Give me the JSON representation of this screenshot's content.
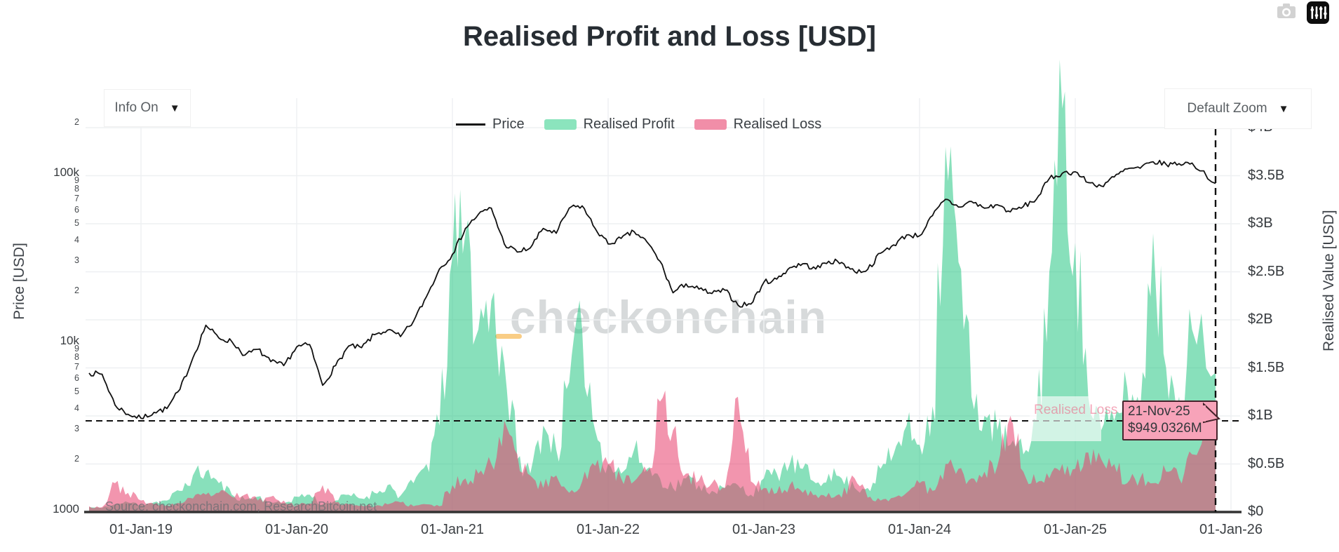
{
  "header": {
    "title": "Realised Profit and Loss [USD]"
  },
  "controls": {
    "info_dropdown": {
      "label": "Info On",
      "arrow": "▼"
    },
    "zoom_dropdown": {
      "label": "Default Zoom",
      "arrow": "▼"
    }
  },
  "legend": {
    "items": [
      {
        "name": "Price",
        "type": "line",
        "color": "#111111"
      },
      {
        "name": "Realised Profit",
        "type": "area",
        "color": "#8be4bd"
      },
      {
        "name": "Realised Loss",
        "type": "area",
        "color": "#f18ea8"
      }
    ]
  },
  "axes": {
    "left_title": "Price [USD]",
    "right_title": "Realised Value [USD]",
    "price_ticks": [
      {
        "label": "2",
        "value": 200000,
        "minor": true
      },
      {
        "label": "100k",
        "value": 100000,
        "minor": false
      },
      {
        "label": "9",
        "value": 90000,
        "minor": true
      },
      {
        "label": "8",
        "value": 80000,
        "minor": true
      },
      {
        "label": "7",
        "value": 70000,
        "minor": true
      },
      {
        "label": "6",
        "value": 60000,
        "minor": true
      },
      {
        "label": "5",
        "value": 50000,
        "minor": true
      },
      {
        "label": "4",
        "value": 40000,
        "minor": true
      },
      {
        "label": "3",
        "value": 30000,
        "minor": true
      },
      {
        "label": "2",
        "value": 20000,
        "minor": true
      },
      {
        "label": "10k",
        "value": 10000,
        "minor": false
      },
      {
        "label": "9",
        "value": 9000,
        "minor": true
      },
      {
        "label": "8",
        "value": 8000,
        "minor": true
      },
      {
        "label": "7",
        "value": 7000,
        "minor": true
      },
      {
        "label": "6",
        "value": 6000,
        "minor": true
      },
      {
        "label": "5",
        "value": 5000,
        "minor": true
      },
      {
        "label": "4",
        "value": 4000,
        "minor": true
      },
      {
        "label": "3",
        "value": 3000,
        "minor": true
      },
      {
        "label": "2",
        "value": 2000,
        "minor": true
      },
      {
        "label": "1000",
        "value": 1000,
        "minor": false
      }
    ],
    "value_ticks": [
      {
        "label": "$0",
        "value": 0
      },
      {
        "label": "$0.5B",
        "value": 0.5
      },
      {
        "label": "$1B",
        "value": 1
      },
      {
        "label": "$1.5B",
        "value": 1.5
      },
      {
        "label": "$2B",
        "value": 2
      },
      {
        "label": "$2.5B",
        "value": 2.5
      },
      {
        "label": "$3B",
        "value": 3
      },
      {
        "label": "$3.5B",
        "value": 3.5
      },
      {
        "label": "$4B",
        "value": 4
      }
    ],
    "x_ticks": [
      {
        "label": "01-Jan-19",
        "year": 2019
      },
      {
        "label": "01-Jan-20",
        "year": 2020
      },
      {
        "label": "01-Jan-21",
        "year": 2021
      },
      {
        "label": "01-Jan-22",
        "year": 2022
      },
      {
        "label": "01-Jan-23",
        "year": 2023
      },
      {
        "label": "01-Jan-24",
        "year": 2024
      },
      {
        "label": "01-Jan-25",
        "year": 2025
      },
      {
        "label": "01-Jan-26",
        "year": 2026
      }
    ]
  },
  "annotations": {
    "watermark": "checkonchain",
    "source": "Source: checkonchain.com, ResearchBitcoin.net",
    "hover_series_label": "Realised Loss",
    "tooltip": {
      "date": "21-Nov-25",
      "value": "$949.0326M"
    }
  },
  "colors": {
    "price_line": "#111111",
    "profit_fill": "rgba(38,198,132,0.55)",
    "loss_fill": "rgba(232,62,108,0.55)",
    "grid": "#eef0f2",
    "axis_line": "#333333",
    "crosshair": "#111111",
    "tooltip_bg": "#f7a3b9",
    "tooltip_border": "#45242c"
  },
  "chart_data": {
    "type": "area",
    "title": "Realised Profit and Loss [USD]",
    "x_start": "2018-09",
    "x_end": "2025-11-21",
    "interval": "monthly",
    "left_axis": {
      "label": "Price [USD]",
      "scale": "log",
      "range": [
        1000,
        200000
      ]
    },
    "right_axis": {
      "label": "Realised Value [USD]",
      "scale": "linear",
      "range_billions_usd": [
        0,
        4.3
      ]
    },
    "legend_position": "top-center",
    "grid": true,
    "series": [
      {
        "name": "Price",
        "axis": "left",
        "style": "line",
        "unit": "USD",
        "color": "#111111",
        "values": [
          6500,
          6400,
          4200,
          3700,
          3500,
          3800,
          4000,
          5200,
          8000,
          12500,
          10500,
          10000,
          8300,
          9000,
          7600,
          7200,
          9300,
          9600,
          5500,
          7200,
          9400,
          9200,
          11000,
          11700,
          10700,
          13200,
          18500,
          27000,
          33000,
          47000,
          57000,
          62000,
          38000,
          34000,
          36000,
          47000,
          44000,
          62000,
          64000,
          47000,
          38000,
          41000,
          45000,
          39000,
          30000,
          19500,
          22000,
          20500,
          19300,
          20200,
          16500,
          16700,
          22500,
          23500,
          27500,
          29000,
          27000,
          30000,
          29500,
          26000,
          26800,
          33500,
          37500,
          43000,
          42500,
          56000,
          70000,
          63000,
          68000,
          62000,
          65000,
          59000,
          63500,
          70000,
          93000,
          100000,
          102000,
          88000,
          84000,
          95000,
          106000,
          107000,
          117000,
          113000,
          114000,
          115000,
          87000
        ]
      },
      {
        "name": "Realised Profit",
        "axis": "right",
        "style": "area",
        "unit": "USD_billions",
        "color": "#26c685",
        "values": [
          0.05,
          0.04,
          0.08,
          0.1,
          0.08,
          0.1,
          0.12,
          0.22,
          0.38,
          0.42,
          0.3,
          0.18,
          0.13,
          0.16,
          0.1,
          0.09,
          0.16,
          0.18,
          0.08,
          0.12,
          0.18,
          0.14,
          0.2,
          0.28,
          0.17,
          0.3,
          0.5,
          0.9,
          2.65,
          2.9,
          1.9,
          2.2,
          1.55,
          0.55,
          0.4,
          0.9,
          0.65,
          1.35,
          1.9,
          0.85,
          0.5,
          0.4,
          0.65,
          0.45,
          0.35,
          0.25,
          0.35,
          0.28,
          0.22,
          0.25,
          0.28,
          0.18,
          0.35,
          0.4,
          0.5,
          0.45,
          0.3,
          0.4,
          0.35,
          0.25,
          0.25,
          0.45,
          0.6,
          0.9,
          0.7,
          1.1,
          3.8,
          2.6,
          1.2,
          1.0,
          0.85,
          0.7,
          0.6,
          0.95,
          2.5,
          4.2,
          2.8,
          1.2,
          0.85,
          0.95,
          1.3,
          1.05,
          2.9,
          1.5,
          1.2,
          1.9,
          1.45
        ]
      },
      {
        "name": "Realised Loss",
        "axis": "right",
        "style": "area",
        "unit": "USD_billions",
        "color": "#e83e6c",
        "values": [
          0.06,
          0.05,
          0.3,
          0.2,
          0.12,
          0.08,
          0.07,
          0.09,
          0.14,
          0.18,
          0.2,
          0.16,
          0.18,
          0.12,
          0.16,
          0.12,
          0.07,
          0.09,
          0.28,
          0.1,
          0.08,
          0.07,
          0.06,
          0.08,
          0.1,
          0.06,
          0.08,
          0.06,
          0.28,
          0.35,
          0.4,
          0.5,
          0.95,
          0.6,
          0.38,
          0.25,
          0.38,
          0.2,
          0.32,
          0.48,
          0.5,
          0.35,
          0.32,
          0.42,
          1.15,
          0.85,
          0.4,
          0.33,
          0.3,
          0.25,
          1.2,
          0.32,
          0.25,
          0.2,
          0.28,
          0.2,
          0.18,
          0.2,
          0.15,
          0.35,
          0.15,
          0.12,
          0.15,
          0.2,
          0.3,
          0.22,
          0.5,
          0.45,
          0.35,
          0.42,
          0.48,
          1.0,
          0.42,
          0.3,
          0.35,
          0.5,
          0.45,
          0.62,
          0.55,
          0.5,
          0.3,
          0.35,
          0.3,
          0.42,
          0.35,
          0.6,
          0.949
        ]
      }
    ],
    "crosshair": {
      "date": "21-Nov-25",
      "value_billions": 0.9490326
    }
  }
}
